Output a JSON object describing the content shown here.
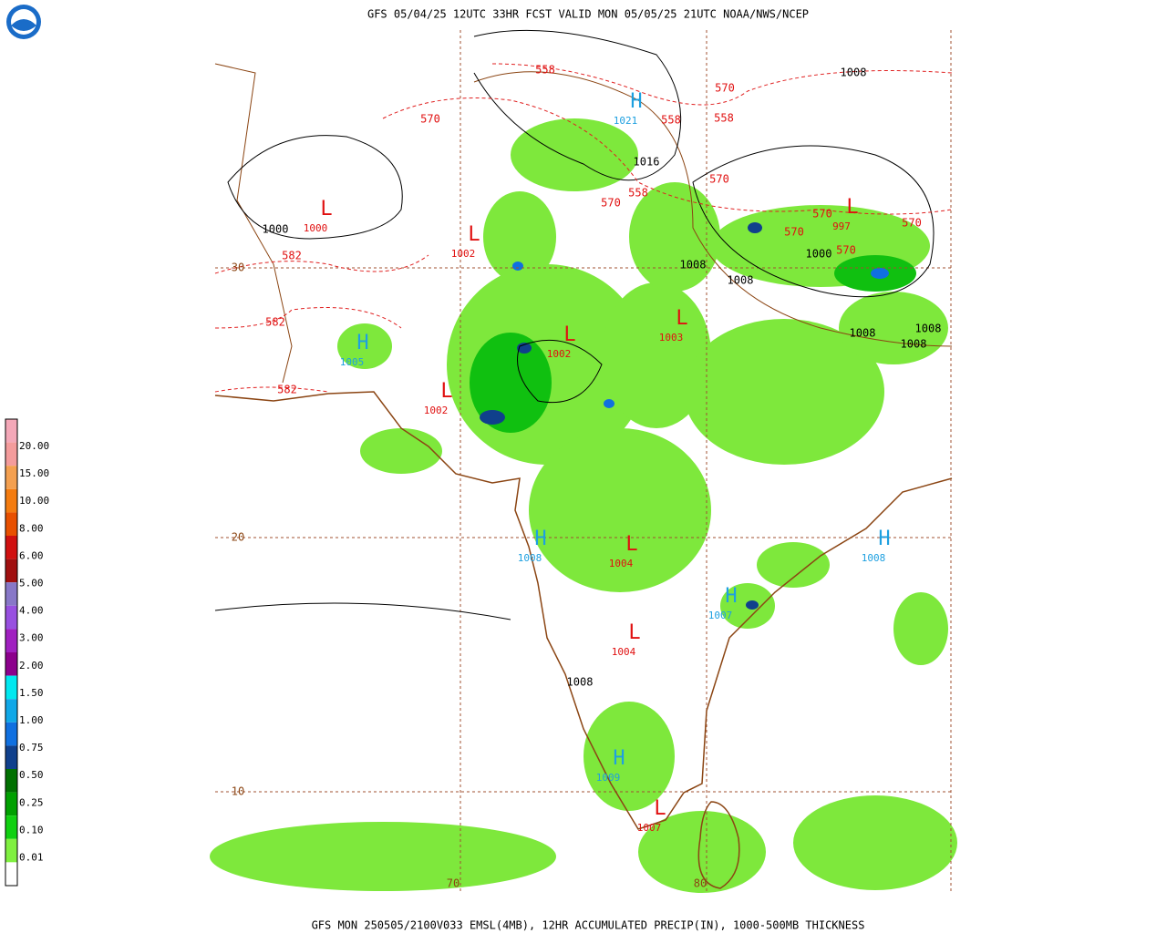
{
  "title": "GFS 05/04/25 12UTC 33HR FCST VALID MON 05/05/25 21UTC NOAA/NWS/NCEP",
  "footer": "GFS MON 250505/2100V033 EMSL(4MB), 12HR ACCUMULATED PRECIP(IN), 1000-500MB THICKNESS",
  "legend": {
    "labels": [
      "20.00",
      "15.00",
      "10.00",
      "8.00",
      "6.00",
      "5.00",
      "4.00",
      "3.00",
      "2.00",
      "1.50",
      "1.00",
      "0.75",
      "0.50",
      "0.25",
      "0.10",
      "0.01"
    ],
    "band_colors": [
      "#f4a8b8",
      "#f49c9c",
      "#f4a050",
      "#f47c10",
      "#e85000",
      "#d01010",
      "#a01010",
      "#8878c8",
      "#9850e0",
      "#a020c0",
      "#8c008c",
      "#00e8f0",
      "#10a8e8",
      "#1070e0",
      "#10408c",
      "#007000",
      "#00a000",
      "#10d010",
      "#80f040",
      "#ffffff"
    ]
  },
  "grid_labels": [
    "30",
    "20",
    "10",
    "70",
    "80"
  ],
  "pressure_centers": [
    {
      "symbol": "H",
      "value": "1021"
    },
    {
      "symbol": "L",
      "value": "1000"
    },
    {
      "symbol": "L",
      "value": "1002"
    },
    {
      "symbol": "L",
      "value": "1002"
    },
    {
      "symbol": "L",
      "value": "1003"
    },
    {
      "symbol": "H",
      "value": "1005"
    },
    {
      "symbol": "L",
      "value": "1002"
    },
    {
      "symbol": "L",
      "value": "997"
    },
    {
      "symbol": "H",
      "value": "1008"
    },
    {
      "symbol": "L",
      "value": "1004"
    },
    {
      "symbol": "H",
      "value": "1008"
    },
    {
      "symbol": "H",
      "value": "1007"
    },
    {
      "symbol": "L",
      "value": "1004"
    },
    {
      "symbol": "H",
      "value": "1009"
    },
    {
      "symbol": "L",
      "value": "1007"
    }
  ],
  "isobar_labels": [
    "1008",
    "1016",
    "1008",
    "1008",
    "1000",
    "1008",
    "1008",
    "1008",
    "1008",
    "1000"
  ],
  "thickness_labels": [
    "558",
    "570",
    "570",
    "558",
    "558",
    "570",
    "570",
    "558",
    "570",
    "570",
    "570",
    "570",
    "582",
    "582",
    "582"
  ]
}
